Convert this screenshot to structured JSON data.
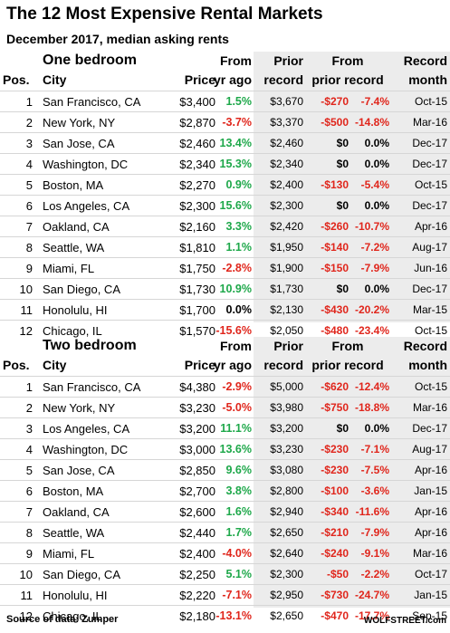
{
  "title": "The 12 Most Expensive Rental Markets",
  "subtitle": "December 2017, median asking rents",
  "headers": {
    "pos": "Pos.",
    "city": "City",
    "price": "Price",
    "from_yr_1": "From",
    "from_yr_2": "yr ago",
    "prior_1": "Prior",
    "prior_2": "record",
    "from_prior_1": "From",
    "from_prior_2": "prior record",
    "rec_month_1": "Record",
    "rec_month_2": "month"
  },
  "sections": [
    {
      "name": "One bedroom",
      "rows": [
        {
          "pos": "1",
          "city": "San Francisco, CA",
          "price": "$3,400",
          "yr_ago": "1.5%",
          "prior_record": "$3,670",
          "from_prior_dollar": "-$270",
          "from_prior_pct": "-7.4%",
          "record_month": "Oct-15"
        },
        {
          "pos": "2",
          "city": "New York, NY",
          "price": "$2,870",
          "yr_ago": "-3.7%",
          "prior_record": "$3,370",
          "from_prior_dollar": "-$500",
          "from_prior_pct": "-14.8%",
          "record_month": "Mar-16"
        },
        {
          "pos": "3",
          "city": "San Jose, CA",
          "price": "$2,460",
          "yr_ago": "13.4%",
          "prior_record": "$2,460",
          "from_prior_dollar": "$0",
          "from_prior_pct": "0.0%",
          "record_month": "Dec-17"
        },
        {
          "pos": "4",
          "city": "Washington, DC",
          "price": "$2,340",
          "yr_ago": "15.3%",
          "prior_record": "$2,340",
          "from_prior_dollar": "$0",
          "from_prior_pct": "0.0%",
          "record_month": "Dec-17"
        },
        {
          "pos": "5",
          "city": "Boston, MA",
          "price": "$2,270",
          "yr_ago": "0.9%",
          "prior_record": "$2,400",
          "from_prior_dollar": "-$130",
          "from_prior_pct": "-5.4%",
          "record_month": "Oct-15"
        },
        {
          "pos": "6",
          "city": "Los Angeles, CA",
          "price": "$2,300",
          "yr_ago": "15.6%",
          "prior_record": "$2,300",
          "from_prior_dollar": "$0",
          "from_prior_pct": "0.0%",
          "record_month": "Dec-17"
        },
        {
          "pos": "7",
          "city": "Oakland, CA",
          "price": "$2,160",
          "yr_ago": "3.3%",
          "prior_record": "$2,420",
          "from_prior_dollar": "-$260",
          "from_prior_pct": "-10.7%",
          "record_month": "Apr-16"
        },
        {
          "pos": "8",
          "city": "Seattle, WA",
          "price": "$1,810",
          "yr_ago": "1.1%",
          "prior_record": "$1,950",
          "from_prior_dollar": "-$140",
          "from_prior_pct": "-7.2%",
          "record_month": "Aug-17"
        },
        {
          "pos": "9",
          "city": "Miami, FL",
          "price": "$1,750",
          "yr_ago": "-2.8%",
          "prior_record": "$1,900",
          "from_prior_dollar": "-$150",
          "from_prior_pct": "-7.9%",
          "record_month": "Jun-16"
        },
        {
          "pos": "10",
          "city": "San Diego, CA",
          "price": "$1,730",
          "yr_ago": "10.9%",
          "prior_record": "$1,730",
          "from_prior_dollar": "$0",
          "from_prior_pct": "0.0%",
          "record_month": "Dec-17"
        },
        {
          "pos": "11",
          "city": "Honolulu, HI",
          "price": "$1,700",
          "yr_ago": "0.0%",
          "prior_record": "$2,130",
          "from_prior_dollar": "-$430",
          "from_prior_pct": "-20.2%",
          "record_month": "Mar-15"
        },
        {
          "pos": "12",
          "city": "Chicago, IL",
          "price": "$1,570",
          "yr_ago": "-15.6%",
          "prior_record": "$2,050",
          "from_prior_dollar": "-$480",
          "from_prior_pct": "-23.4%",
          "record_month": "Oct-15"
        }
      ]
    },
    {
      "name": "Two bedroom",
      "rows": [
        {
          "pos": "1",
          "city": "San Francisco, CA",
          "price": "$4,380",
          "yr_ago": "-2.9%",
          "prior_record": "$5,000",
          "from_prior_dollar": "-$620",
          "from_prior_pct": "-12.4%",
          "record_month": "Oct-15"
        },
        {
          "pos": "2",
          "city": "New York, NY",
          "price": "$3,230",
          "yr_ago": "-5.0%",
          "prior_record": "$3,980",
          "from_prior_dollar": "-$750",
          "from_prior_pct": "-18.8%",
          "record_month": "Mar-16"
        },
        {
          "pos": "3",
          "city": "Los Angeles, CA",
          "price": "$3,200",
          "yr_ago": "11.1%",
          "prior_record": "$3,200",
          "from_prior_dollar": "$0",
          "from_prior_pct": "0.0%",
          "record_month": "Dec-17"
        },
        {
          "pos": "4",
          "city": "Washington, DC",
          "price": "$3,000",
          "yr_ago": "13.6%",
          "prior_record": "$3,230",
          "from_prior_dollar": "-$230",
          "from_prior_pct": "-7.1%",
          "record_month": "Aug-17"
        },
        {
          "pos": "5",
          "city": "San Jose, CA",
          "price": "$2,850",
          "yr_ago": "9.6%",
          "prior_record": "$3,080",
          "from_prior_dollar": "-$230",
          "from_prior_pct": "-7.5%",
          "record_month": "Apr-16"
        },
        {
          "pos": "6",
          "city": "Boston, MA",
          "price": "$2,700",
          "yr_ago": "3.8%",
          "prior_record": "$2,800",
          "from_prior_dollar": "-$100",
          "from_prior_pct": "-3.6%",
          "record_month": "Jan-15"
        },
        {
          "pos": "7",
          "city": "Oakland, CA",
          "price": "$2,600",
          "yr_ago": "1.6%",
          "prior_record": "$2,940",
          "from_prior_dollar": "-$340",
          "from_prior_pct": "-11.6%",
          "record_month": "Apr-16"
        },
        {
          "pos": "8",
          "city": "Seattle, WA",
          "price": "$2,440",
          "yr_ago": "1.7%",
          "prior_record": "$2,650",
          "from_prior_dollar": "-$210",
          "from_prior_pct": "-7.9%",
          "record_month": "Apr-16"
        },
        {
          "pos": "9",
          "city": "Miami, FL",
          "price": "$2,400",
          "yr_ago": "-4.0%",
          "prior_record": "$2,640",
          "from_prior_dollar": "-$240",
          "from_prior_pct": "-9.1%",
          "record_month": "Mar-16"
        },
        {
          "pos": "10",
          "city": "San Diego, CA",
          "price": "$2,250",
          "yr_ago": "5.1%",
          "prior_record": "$2,300",
          "from_prior_dollar": "-$50",
          "from_prior_pct": "-2.2%",
          "record_month": "Oct-17"
        },
        {
          "pos": "11",
          "city": "Honolulu, HI",
          "price": "$2,220",
          "yr_ago": "-7.1%",
          "prior_record": "$2,950",
          "from_prior_dollar": "-$730",
          "from_prior_pct": "-24.7%",
          "record_month": "Jan-15"
        },
        {
          "pos": "12",
          "city": "Chicago, IL",
          "price": "$2,180",
          "yr_ago": "-13.1%",
          "prior_record": "$2,650",
          "from_prior_dollar": "-$470",
          "from_prior_pct": "-17.7%",
          "record_month": "Sep-15"
        }
      ]
    }
  ],
  "footer": {
    "source": "Source of data: Zumper",
    "brand": "WOLFSTREET.com"
  },
  "colors": {
    "positive": "#1ea84a",
    "negative": "#e0261c",
    "neutral": "#000000",
    "shade": "#ececec"
  }
}
